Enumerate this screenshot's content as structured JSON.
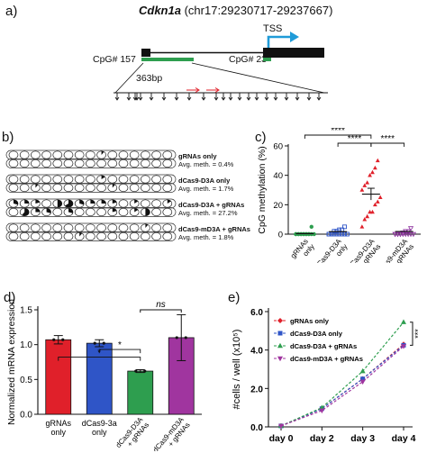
{
  "panels": {
    "a": "a)",
    "b": "b)",
    "c": "c)",
    "d": "d)",
    "e": "e)"
  },
  "panel_a": {
    "gene": "Cdkn1a",
    "coords": "(chr17:29230717-29237667)",
    "tss": "TSS",
    "cpg1": "CpG# 157",
    "cpg2": "CpG# 23",
    "span": "363bp"
  },
  "panel_b": {
    "rows": [
      {
        "name": "gRNAs only",
        "meth": "Avg. meth. = 0.4%",
        "filled": [
          0,
          0,
          0,
          0,
          0,
          0,
          0,
          0,
          0.1,
          0,
          0,
          0,
          0,
          0,
          0,
          0,
          0,
          0,
          0,
          0,
          0,
          0,
          0,
          0,
          0,
          0,
          0,
          0,
          0,
          0
        ]
      },
      {
        "name": "dCas9-D3A only",
        "meth": "Avg. meth. = 1.7%",
        "filled": [
          0,
          0,
          0,
          0,
          0,
          0,
          0,
          0,
          0.15,
          0,
          0,
          0,
          0,
          0,
          0,
          0,
          0,
          0.1,
          0,
          0,
          0,
          0,
          0,
          0,
          0.1,
          0,
          0,
          0,
          0,
          0
        ]
      },
      {
        "name": "dCas9-D3A + gRNAs",
        "meth": "Avg. meth. = 27.2%",
        "filled": [
          0.3,
          0.25,
          0.2,
          0,
          0.5,
          0.65,
          0.3,
          0.25,
          0.25,
          0.2,
          0,
          0.15,
          0,
          0,
          0.15,
          0,
          0.6,
          0.25,
          0.3,
          0,
          0.3,
          0,
          0,
          0,
          0.2,
          0,
          0.15,
          0.5,
          0,
          0
        ]
      },
      {
        "name": "dCas9-mD3A + gRNAs",
        "meth": "Avg. meth. = 1.8%",
        "filled": [
          0,
          0,
          0,
          0,
          0,
          0,
          0,
          0,
          0,
          0,
          0,
          0,
          0.1,
          0,
          0,
          0,
          0,
          0,
          0,
          0,
          0,
          0.1,
          0,
          0,
          0,
          0,
          0,
          0,
          0,
          0
        ]
      }
    ]
  },
  "chart_data": [
    {
      "id": "c",
      "type": "scatter",
      "ylabel": "CpG methylation (%)",
      "ylim": [
        0,
        60
      ],
      "yticks": [
        "0",
        "20",
        "40",
        "60"
      ],
      "categories": [
        "gRNAs only",
        "dCas9-D3A only",
        "dCas9-D3A + gRNAs",
        "dCas9-mD3A + gRNAs"
      ],
      "series": [
        {
          "values": [
            0.4,
            1.7,
            27.2,
            1.8
          ],
          "colors": [
            "#2e9e4f",
            "#2f55c7",
            "#e0202a",
            "#8a2f9c"
          ]
        }
      ],
      "points": [
        [
          0,
          0,
          0,
          0,
          0,
          0,
          0,
          0,
          0,
          0,
          0,
          0,
          0,
          0,
          5
        ],
        [
          0,
          0,
          0,
          0,
          0,
          0,
          0,
          0,
          0,
          0,
          2,
          2,
          3,
          3,
          5
        ],
        [
          5,
          10,
          12,
          15,
          15,
          20,
          22,
          25,
          30,
          33,
          35,
          40,
          42,
          45,
          50
        ],
        [
          0,
          0,
          0,
          0,
          0,
          0,
          0,
          0,
          0,
          0,
          0,
          1,
          2,
          2,
          4
        ]
      ],
      "significance": [
        "****",
        "****",
        "****"
      ]
    },
    {
      "id": "d",
      "type": "bar",
      "ylabel": "Normalized mRNA expression",
      "ylim": [
        0,
        1.5
      ],
      "yticks": [
        "0.0",
        "0.5",
        "1.0",
        "1.5"
      ],
      "categories": [
        "gRNAs only",
        "dCas9-3a only",
        "dCas9-D3A + gRNAs",
        "dCas9-mD3A + gRNAs"
      ],
      "values": [
        1.07,
        1.02,
        0.62,
        1.1
      ],
      "errors": [
        0.06,
        0.05,
        0.02,
        0.33
      ],
      "colors": [
        "#e0202a",
        "#2f55c7",
        "#2e9e4f",
        "#a0359f"
      ],
      "significance": [
        "*",
        "*",
        "ns"
      ]
    },
    {
      "id": "e",
      "type": "line",
      "ylabel": "#cells / well (x10⁵)",
      "ylim": [
        0,
        6
      ],
      "yticks": [
        "0.0",
        "2.0",
        "4.0",
        "6.0"
      ],
      "categories": [
        "day 0",
        "day 2",
        "day 3",
        "day 4"
      ],
      "series": [
        {
          "name": "gRNAs only",
          "values": [
            0.05,
            0.95,
            2.5,
            4.3
          ],
          "color": "#e0202a",
          "marker": "diamond"
        },
        {
          "name": "dCas9-D3A only",
          "values": [
            0.05,
            0.95,
            2.5,
            4.25
          ],
          "color": "#2f55c7",
          "marker": "square"
        },
        {
          "name": "dCas9-D3A + gRNAs",
          "values": [
            0.05,
            1.0,
            2.9,
            5.45
          ],
          "color": "#2e9e4f",
          "marker": "triangle"
        },
        {
          "name": "dCas9-mD3A + gRNAs",
          "values": [
            0.05,
            0.85,
            2.35,
            4.2
          ],
          "color": "#a0359f",
          "marker": "triangle-down"
        }
      ],
      "significance": "***"
    }
  ]
}
